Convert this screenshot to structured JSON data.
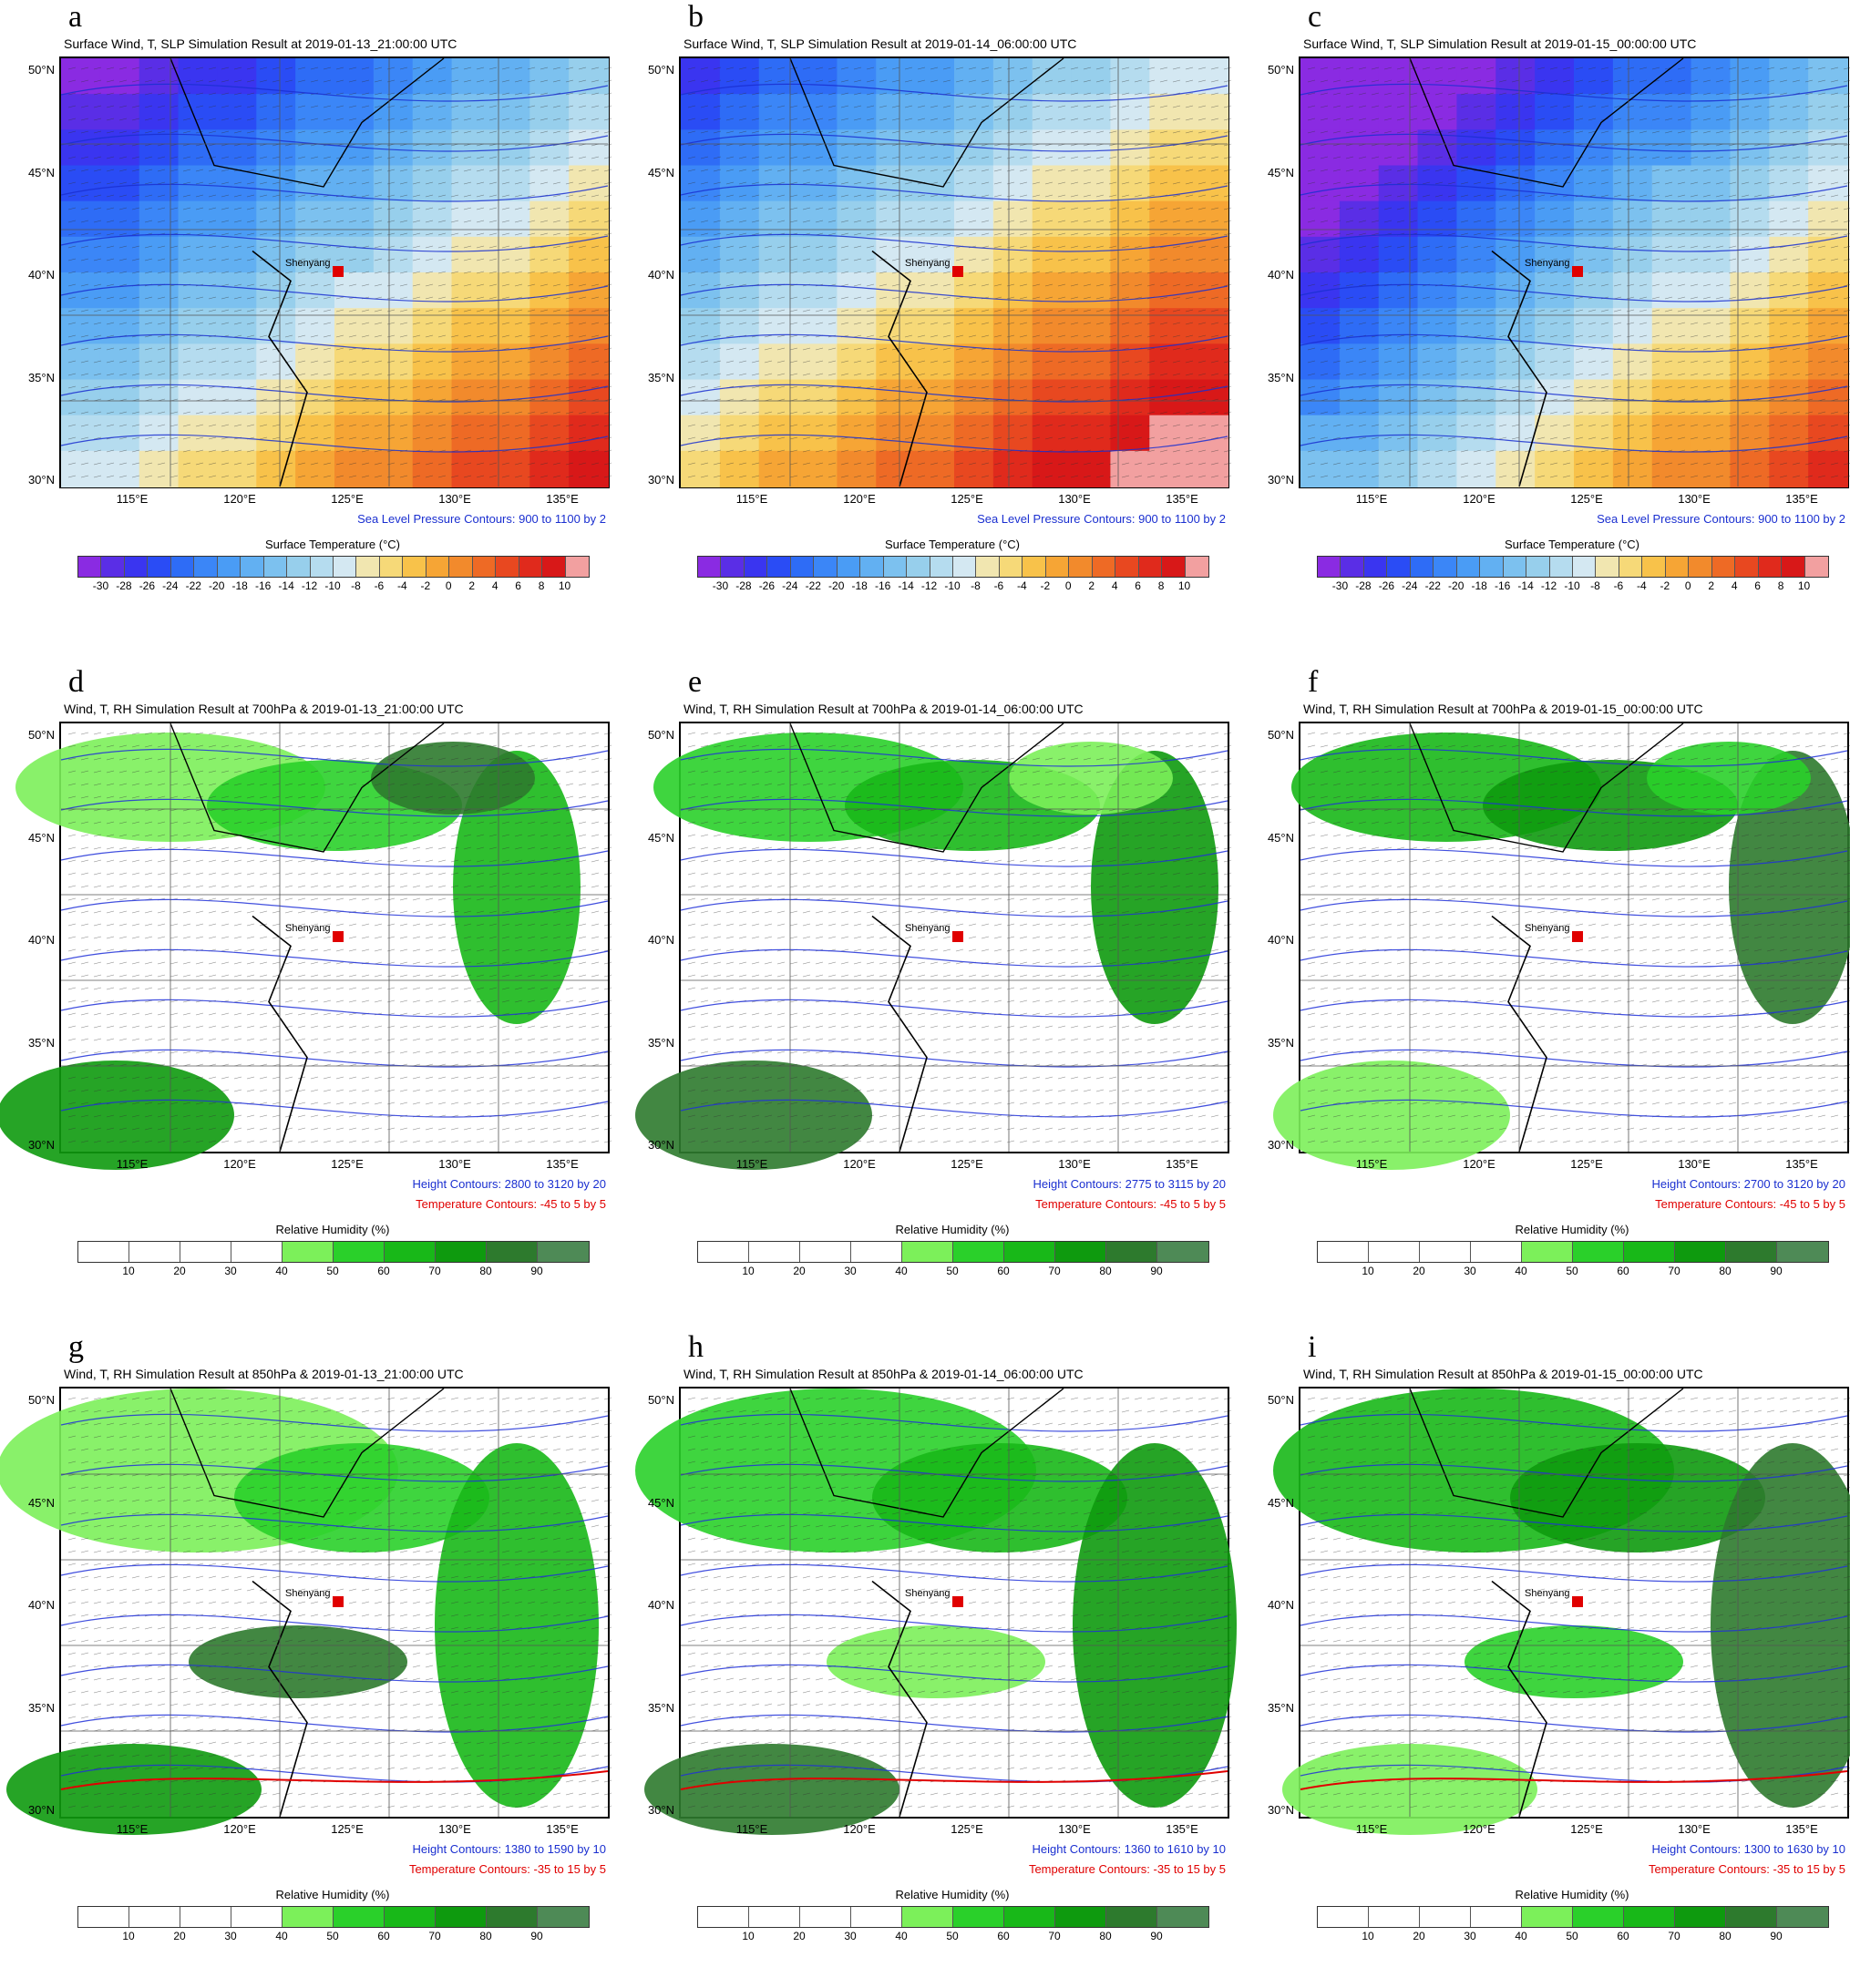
{
  "panels": [
    {
      "letter": "a",
      "title": "Surface Wind, T, SLP Simulation Result at 2019-01-13_21:00:00 UTC",
      "kind": "surface",
      "notes": [
        "Sea Level Pressure Contours: 900 to 1100 by 2"
      ]
    },
    {
      "letter": "b",
      "title": "Surface Wind, T, SLP Simulation Result at 2019-01-14_06:00:00 UTC",
      "kind": "surface",
      "notes": [
        "Sea Level Pressure Contours: 900 to 1100 by 2"
      ]
    },
    {
      "letter": "c",
      "title": "Surface Wind, T, SLP Simulation Result at 2019-01-15_00:00:00 UTC",
      "kind": "surface",
      "notes": [
        "Sea Level Pressure Contours: 900 to 1100 by 2"
      ]
    },
    {
      "letter": "d",
      "title": "Wind, T, RH Simulation Result at 700hPa & 2019-01-13_21:00:00 UTC",
      "kind": "rh700",
      "notes": [
        "Height Contours: 2800 to 3120 by 20",
        "Temperature Contours: -45 to 5 by 5"
      ]
    },
    {
      "letter": "e",
      "title": "Wind, T, RH Simulation Result at 700hPa & 2019-01-14_06:00:00 UTC",
      "kind": "rh700",
      "notes": [
        "Height Contours: 2775 to 3115 by 20",
        "Temperature Contours: -45 to 5 by 5"
      ]
    },
    {
      "letter": "f",
      "title": "Wind, T, RH Simulation Result at 700hPa & 2019-01-15_00:00:00 UTC",
      "kind": "rh700",
      "notes": [
        "Height Contours: 2700 to 3120 by 20",
        "Temperature Contours: -45 to 5 by 5"
      ]
    },
    {
      "letter": "g",
      "title": "Wind, T, RH Simulation Result at 850hPa & 2019-01-13_21:00:00 UTC",
      "kind": "rh850",
      "notes": [
        "Height Contours: 1380 to 1590 by 10",
        "Temperature Contours: -35 to 15 by 5"
      ]
    },
    {
      "letter": "h",
      "title": "Wind, T, RH Simulation Result at 850hPa & 2019-01-14_06:00:00 UTC",
      "kind": "rh850",
      "notes": [
        "Height Contours: 1360 to 1610 by 10",
        "Temperature Contours: -35 to 15 by 5"
      ]
    },
    {
      "letter": "i",
      "title": "Wind, T, RH Simulation Result at 850hPa & 2019-01-15_00:00:00 UTC",
      "kind": "rh850",
      "notes": [
        "Height Contours: 1300 to 1630 by 10",
        "Temperature Contours: -35 to 15 by 5"
      ]
    }
  ],
  "lat_labels": [
    "50°N",
    "45°N",
    "40°N",
    "35°N",
    "30°N"
  ],
  "lon_labels": [
    "115°E",
    "120°E",
    "125°E",
    "130°E",
    "135°E"
  ],
  "city_label": "Shenyang",
  "colorbars": {
    "temperature": {
      "title": "Surface Temperature  (°C)",
      "ticks": [
        "-30",
        "-28",
        "-26",
        "-24",
        "-22",
        "-20",
        "-18",
        "-16",
        "-14",
        "-12",
        "-10",
        "-8",
        "-6",
        "-4",
        "-2",
        "0",
        "2",
        "4",
        "6",
        "8",
        "10"
      ],
      "colors": [
        "#8a2be2",
        "#5a2ee6",
        "#3a35f0",
        "#2a4cf5",
        "#2e6cf6",
        "#3b86f7",
        "#4a9cf5",
        "#62b0f2",
        "#7cc1ef",
        "#97cfec",
        "#b5dcef",
        "#d4e8f2",
        "#f1e6b0",
        "#f6d978",
        "#f8c24a",
        "#f6a535",
        "#f28a2c",
        "#ee6a25",
        "#e84820",
        "#e02a1c",
        "#d81818",
        "#f2a0a0"
      ]
    },
    "humidity": {
      "title": "Relative Humidity  (%)",
      "ticks": [
        "10",
        "20",
        "30",
        "40",
        "50",
        "60",
        "70",
        "80",
        "90"
      ],
      "colors": [
        "#ffffff",
        "#ffffff",
        "#ffffff",
        "#ffffff",
        "#7cf05a",
        "#2ad02a",
        "#18b818",
        "#0e9a0e",
        "#2d7a2d",
        "#4e8a56"
      ]
    }
  }
}
